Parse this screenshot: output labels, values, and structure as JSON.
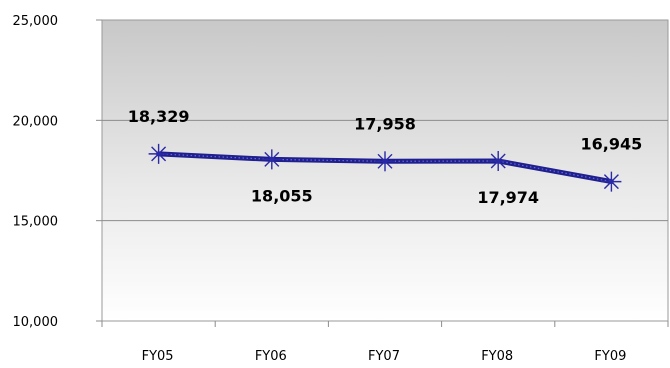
{
  "chart_data": {
    "type": "line",
    "categories": [
      "FY05",
      "FY06",
      "FY07",
      "FY08",
      "FY09"
    ],
    "series": [
      {
        "values": [
          18329,
          18055,
          17958,
          17974,
          16945
        ]
      }
    ],
    "data_labels": [
      "18,329",
      "18,055",
      "17,958",
      "17,974",
      "16,945"
    ],
    "y_tick_labels": [
      "10,000",
      "15,000",
      "20,000",
      "25,000"
    ],
    "y_ticks": [
      10000,
      15000,
      20000,
      25000
    ],
    "ylim": [
      10000,
      25000
    ],
    "marker": "asterisk",
    "line_color": "#1f1f8f",
    "grid": true,
    "title": "",
    "xlabel": "",
    "ylabel": ""
  }
}
